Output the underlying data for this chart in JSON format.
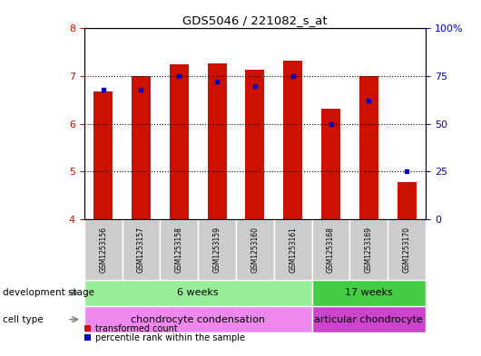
{
  "title": "GDS5046 / 221082_s_at",
  "samples": [
    "GSM1253156",
    "GSM1253157",
    "GSM1253158",
    "GSM1253159",
    "GSM1253160",
    "GSM1253161",
    "GSM1253168",
    "GSM1253169",
    "GSM1253170"
  ],
  "transformed_count": [
    6.68,
    7.0,
    7.24,
    7.27,
    7.14,
    7.32,
    6.32,
    7.0,
    4.77
  ],
  "percentile_rank": [
    68,
    68,
    75,
    72,
    70,
    75,
    50,
    62,
    25
  ],
  "ylim_left": [
    4,
    8
  ],
  "ylim_right": [
    0,
    100
  ],
  "y_ticks_left": [
    4,
    5,
    6,
    7,
    8
  ],
  "y_ticks_right": [
    0,
    25,
    50,
    75,
    100
  ],
  "bar_color": "#CC1100",
  "dot_color": "#0000CC",
  "base_value": 4.0,
  "development_stage_groups": [
    {
      "label": "6 weeks",
      "start": 0,
      "end": 6,
      "color": "#99EE99"
    },
    {
      "label": "17 weeks",
      "start": 6,
      "end": 9,
      "color": "#44CC44"
    }
  ],
  "cell_type_groups": [
    {
      "label": "chondrocyte condensation",
      "start": 0,
      "end": 6,
      "color": "#EE88EE"
    },
    {
      "label": "articular chondrocyte",
      "start": 6,
      "end": 9,
      "color": "#CC44CC"
    }
  ],
  "legend_bar_label": "transformed count",
  "legend_dot_label": "percentile rank within the sample",
  "dev_stage_label": "development stage",
  "cell_type_label": "cell type",
  "bar_color_legend": "#CC1100",
  "dot_color_legend": "#0000CC",
  "tick_color_left": "#CC1100",
  "tick_color_right": "#0000CC"
}
